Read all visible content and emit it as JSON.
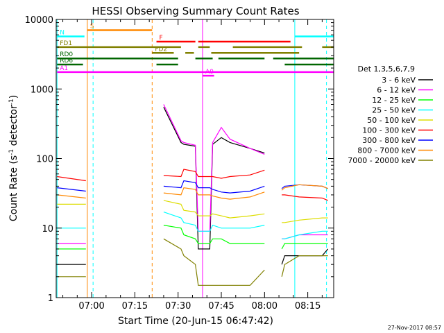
{
  "chart_data": {
    "type": "line",
    "title": "HESSI Observing Summary Count Rates",
    "xlabel": "Start Time (20-Jun-15 06:47:42)",
    "ylabel": "Count Rate (s-1 detector-1)",
    "ylabel_parts": [
      "Count Rate (s",
      "-1",
      " detector",
      "-1",
      ")"
    ],
    "y_scale": "log",
    "ylim": [
      1,
      10000
    ],
    "xlim": [
      "06:47:42",
      "08:24:00"
    ],
    "x_tick_labels": [
      "07:00",
      "07:15",
      "07:30",
      "07:45",
      "08:00",
      "08:15"
    ],
    "y_tick_labels": [
      "1",
      "10",
      "100",
      "1000",
      "10000"
    ],
    "legend_title": "Det 1,3,5,6,7,9",
    "legend_position": "right",
    "footer_date": "27-Nov-2017 08:57",
    "series": [
      {
        "name": "3 - 6 keV",
        "color": "#000000",
        "x": [
          "06:48",
          "06:58",
          "06:59",
          "07:24",
          "07:25",
          "07:31",
          "07:32",
          "07:36",
          "07:37",
          "07:41",
          "07:42",
          "07:45",
          "07:48",
          "07:55",
          "08:00",
          "08:01",
          "08:06",
          "08:07",
          "08:12",
          "08:20",
          "08:22"
        ],
        "values": [
          3,
          3,
          null,
          null,
          550,
          170,
          160,
          150,
          5,
          5,
          160,
          200,
          170,
          140,
          120,
          null,
          3,
          4,
          4,
          4,
          5
        ]
      },
      {
        "name": "6 - 12 keV",
        "color": "#ff00ff",
        "x": [
          "06:48",
          "06:58",
          "06:59",
          "07:24",
          "07:25",
          "07:31",
          "07:32",
          "07:36",
          "07:37",
          "07:41",
          "07:42",
          "07:45",
          "07:48",
          "07:55",
          "08:00",
          "08:01",
          "08:06",
          "08:07",
          "08:12",
          "08:20",
          "08:22"
        ],
        "values": [
          6,
          6,
          null,
          null,
          600,
          180,
          170,
          155,
          9,
          9,
          170,
          280,
          190,
          140,
          115,
          null,
          7,
          7,
          8,
          8,
          8
        ]
      },
      {
        "name": "12 - 25 keV",
        "color": "#00ff00",
        "x": [
          "06:48",
          "06:58",
          "06:59",
          "07:24",
          "07:25",
          "07:31",
          "07:32",
          "07:36",
          "07:37",
          "07:41",
          "07:42",
          "07:45",
          "07:48",
          "07:55",
          "08:00",
          "08:01",
          "08:06",
          "08:07",
          "08:12",
          "08:20",
          "08:22"
        ],
        "values": [
          5,
          5,
          null,
          null,
          11,
          10,
          8,
          7,
          6,
          6,
          7,
          7,
          6,
          6,
          6,
          null,
          5,
          6,
          6,
          6,
          6
        ]
      },
      {
        "name": "25 - 50 keV",
        "color": "#00ffff",
        "x": [
          "06:48",
          "06:58",
          "06:59",
          "07:24",
          "07:25",
          "07:31",
          "07:32",
          "07:36",
          "07:37",
          "07:41",
          "07:42",
          "07:45",
          "07:48",
          "07:55",
          "08:00",
          "08:01",
          "08:06",
          "08:07",
          "08:12",
          "08:20",
          "08:22"
        ],
        "values": [
          10,
          10,
          null,
          null,
          17,
          14,
          12,
          11,
          9,
          9,
          11,
          10,
          10,
          10,
          11,
          null,
          7,
          7,
          8,
          9,
          9
        ]
      },
      {
        "name": "50 - 100 keV",
        "color": "#dddd00",
        "x": [
          "06:48",
          "06:58",
          "06:59",
          "07:24",
          "07:25",
          "07:31",
          "07:32",
          "07:36",
          "07:37",
          "07:41",
          "07:42",
          "07:45",
          "07:48",
          "07:55",
          "08:00",
          "08:01",
          "08:06",
          "08:07",
          "08:12",
          "08:20",
          "08:22"
        ],
        "values": [
          22,
          22,
          null,
          null,
          25,
          22,
          18,
          17,
          15,
          15,
          16,
          15,
          14,
          15,
          16,
          null,
          12,
          12,
          13,
          14,
          14
        ]
      },
      {
        "name": "100 - 300 keV",
        "color": "#ff0000",
        "x": [
          "06:48",
          "06:58",
          "06:59",
          "07:24",
          "07:25",
          "07:31",
          "07:32",
          "07:36",
          "07:37",
          "07:41",
          "07:42",
          "07:45",
          "07:48",
          "07:55",
          "08:00",
          "08:01",
          "08:06",
          "08:07",
          "08:12",
          "08:20",
          "08:22"
        ],
        "values": [
          55,
          48,
          null,
          null,
          57,
          55,
          70,
          65,
          55,
          55,
          55,
          52,
          55,
          58,
          68,
          null,
          30,
          30,
          28,
          27,
          25
        ]
      },
      {
        "name": "300 - 800 keV",
        "color": "#0000ff",
        "x": [
          "06:48",
          "06:58",
          "06:59",
          "07:24",
          "07:25",
          "07:31",
          "07:32",
          "07:36",
          "07:37",
          "07:41",
          "07:42",
          "07:45",
          "07:48",
          "07:55",
          "08:00",
          "08:01",
          "08:06",
          "08:07",
          "08:12",
          "08:20",
          "08:22"
        ],
        "values": [
          38,
          34,
          null,
          null,
          40,
          38,
          48,
          45,
          38,
          38,
          36,
          33,
          32,
          34,
          40,
          null,
          37,
          40,
          42,
          40,
          37
        ]
      },
      {
        "name": "800 - 7000 keV",
        "color": "#ff8800",
        "x": [
          "06:48",
          "06:58",
          "06:59",
          "07:24",
          "07:25",
          "07:31",
          "07:32",
          "07:36",
          "07:37",
          "07:41",
          "07:42",
          "07:45",
          "07:48",
          "07:55",
          "08:00",
          "08:01",
          "08:06",
          "08:07",
          "08:12",
          "08:20",
          "08:22"
        ],
        "values": [
          30,
          27,
          null,
          null,
          32,
          30,
          38,
          36,
          30,
          30,
          29,
          27,
          26,
          28,
          33,
          null,
          35,
          38,
          42,
          40,
          37
        ]
      },
      {
        "name": "7000 - 20000 keV",
        "color": "#808000",
        "x": [
          "06:48",
          "06:58",
          "06:59",
          "07:24",
          "07:25",
          "07:31",
          "07:32",
          "07:36",
          "07:37",
          "07:41",
          "07:42",
          "07:45",
          "07:48",
          "07:55",
          "08:00",
          "08:01",
          "08:06",
          "08:07",
          "08:12",
          "08:20",
          "08:22"
        ],
        "values": [
          2,
          2,
          null,
          null,
          7,
          5,
          4,
          3,
          1.5,
          1.5,
          1.5,
          1.5,
          1.5,
          1.5,
          2.5,
          null,
          2,
          3,
          4,
          4,
          4
        ]
      }
    ],
    "flag_bars": [
      {
        "label": "S",
        "color": "#ff8800",
        "y": 7000,
        "segments": [
          [
            "06:58:30",
            "07:21:00"
          ]
        ]
      },
      {
        "label": "N",
        "color": "#00ffff",
        "y": 5700,
        "segments": [
          [
            "06:48:00",
            "06:57:30"
          ],
          [
            "08:10:30",
            "08:24:00"
          ]
        ]
      },
      {
        "label": "F",
        "color": "#ff0000",
        "y": 4800,
        "segments": [
          [
            "07:22:30",
            "07:36:00"
          ],
          [
            "07:37:00",
            "08:09:00"
          ]
        ]
      },
      {
        "label": "FD1",
        "color": "#808000",
        "y": 4000,
        "segments": [
          [
            "06:48:00",
            "07:31:00"
          ],
          [
            "07:37:00",
            "07:41:00"
          ],
          [
            "07:49:00",
            "08:13:00"
          ],
          [
            "08:20:00",
            "08:24:00"
          ]
        ]
      },
      {
        "label": "FD2",
        "color": "#808000",
        "y": 3300,
        "segments": [
          [
            "07:21:00",
            "07:28:30"
          ],
          [
            "07:32:30",
            "07:35:30"
          ],
          [
            "07:41:30",
            "08:12:00"
          ]
        ]
      },
      {
        "label": "RD0",
        "color": "#006600",
        "y": 2750,
        "segments": [
          [
            "06:48:00",
            "07:30:00"
          ],
          [
            "07:36:00",
            "07:42:00"
          ],
          [
            "07:44:00",
            "08:00:00"
          ],
          [
            "08:03:00",
            "08:24:00"
          ]
        ]
      },
      {
        "label": "RD6",
        "color": "#006600",
        "y": 2250,
        "segments": [
          [
            "06:48:00",
            "06:57:00"
          ],
          [
            "07:22:30",
            "07:30:00"
          ],
          [
            "08:07:00",
            "08:24:00"
          ]
        ]
      },
      {
        "label": "A1",
        "color": "#ff00ff",
        "y": 1750,
        "segments": [
          [
            "06:48:00",
            "08:24:00"
          ]
        ]
      },
      {
        "label": "A0",
        "color": "#ff00ff",
        "y": 1550,
        "segments": [
          [
            "07:38:30",
            "07:42:30"
          ]
        ]
      }
    ],
    "vertical_markers": [
      {
        "time": "06:48:00",
        "color": "#00ffff",
        "style": "solid"
      },
      {
        "time": "06:58:30",
        "color": "#ff8800",
        "style": "solid"
      },
      {
        "time": "07:00:30",
        "color": "#00ffff",
        "style": "dashed"
      },
      {
        "time": "07:21:00",
        "color": "#ff8800",
        "style": "dashed"
      },
      {
        "time": "07:38:30",
        "color": "#ff00ff",
        "style": "solid"
      },
      {
        "time": "08:10:30",
        "color": "#00ffff",
        "style": "solid"
      },
      {
        "time": "08:21:30",
        "color": "#00ffff",
        "style": "dashed"
      }
    ]
  }
}
